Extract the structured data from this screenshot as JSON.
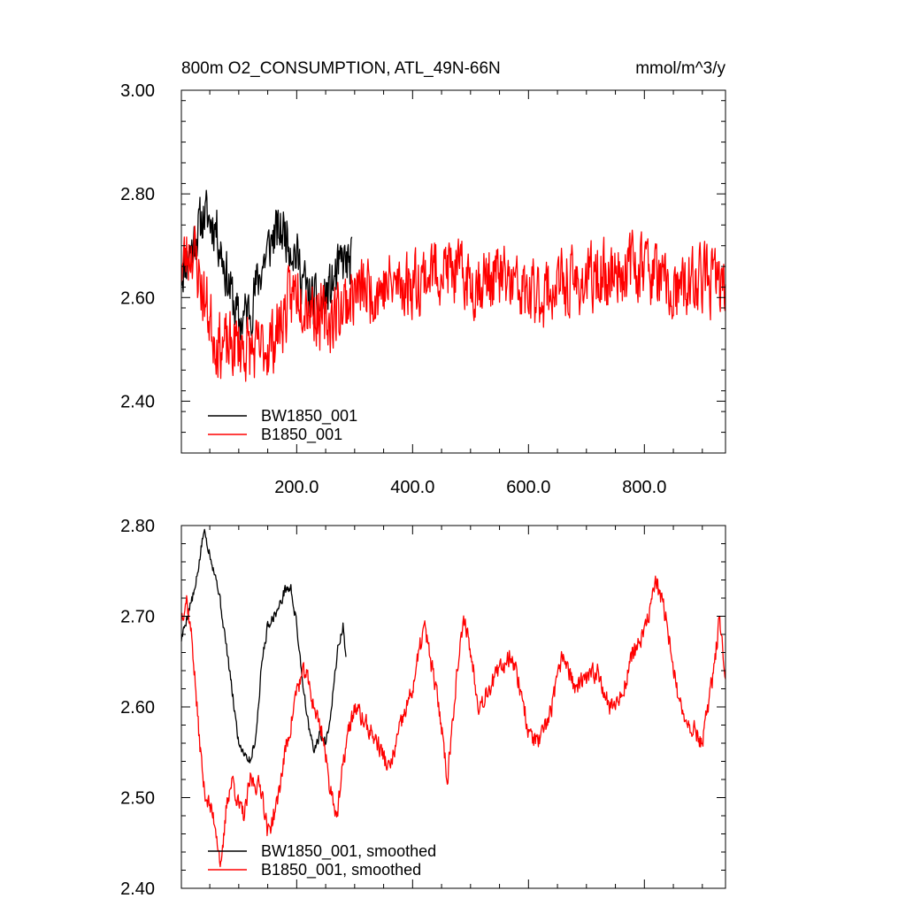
{
  "chart_data": [
    {
      "type": "line",
      "title": "800m O2_CONSUMPTION, ATL_49N-66N",
      "units": "mmol/m^3/y",
      "xlim": [
        1,
        940
      ],
      "ylim": [
        2.3,
        3.0
      ],
      "xticks": [
        200,
        400,
        600,
        800
      ],
      "xtick_labels": [
        "200.0",
        "400.0",
        "600.0",
        "800.0"
      ],
      "yticks": [
        2.4,
        2.6,
        2.8,
        3.0
      ],
      "ytick_labels": [
        "2.40",
        "2.60",
        "2.80",
        "3.00"
      ],
      "grid": false,
      "legend_position": "lower-left",
      "series": [
        {
          "name": "BW1850_001",
          "color": "#000000",
          "x_start": 1,
          "x_end": 295,
          "anchor_x": [
            1,
            20,
            40,
            60,
            80,
            100,
            120,
            140,
            160,
            180,
            200,
            220,
            240,
            260,
            280,
            295
          ],
          "anchor_y": [
            2.65,
            2.7,
            2.76,
            2.74,
            2.64,
            2.55,
            2.58,
            2.66,
            2.72,
            2.73,
            2.68,
            2.6,
            2.58,
            2.62,
            2.67,
            2.66
          ],
          "noise_amplitude": 0.07,
          "seed": 11
        },
        {
          "name": "B1850_001",
          "color": "#ff0000",
          "x_start": 1,
          "x_end": 940,
          "anchor_x": [
            1,
            20,
            40,
            60,
            80,
            100,
            130,
            160,
            200,
            250,
            300,
            350,
            400,
            450,
            500,
            550,
            600,
            650,
            700,
            750,
            800,
            850,
            900,
            940
          ],
          "anchor_y": [
            2.66,
            2.7,
            2.6,
            2.52,
            2.5,
            2.51,
            2.49,
            2.52,
            2.62,
            2.55,
            2.61,
            2.62,
            2.63,
            2.66,
            2.63,
            2.64,
            2.6,
            2.62,
            2.63,
            2.65,
            2.67,
            2.6,
            2.64,
            2.62
          ],
          "noise_amplitude": 0.09,
          "seed": 23
        }
      ]
    },
    {
      "type": "line",
      "title": "",
      "xlim": [
        1,
        940
      ],
      "ylim": [
        2.4,
        2.8
      ],
      "yticks": [
        2.4,
        2.5,
        2.6,
        2.7,
        2.8
      ],
      "ytick_labels": [
        "2.40",
        "2.50",
        "2.60",
        "2.70",
        "2.80"
      ],
      "xticks": [
        200,
        400,
        600,
        800
      ],
      "xtick_labels": [],
      "grid": false,
      "legend_position": "lower-left",
      "series": [
        {
          "name": "BW1850_001, smoothed",
          "color": "#000000",
          "x_start": 1,
          "x_end": 285,
          "anchor_x": [
            1,
            15,
            25,
            40,
            50,
            65,
            80,
            90,
            100,
            110,
            120,
            130,
            140,
            150,
            160,
            170,
            180,
            190,
            200,
            210,
            220,
            230,
            240,
            250,
            260,
            270,
            280,
            285
          ],
          "anchor_y": [
            2.675,
            2.71,
            2.73,
            2.795,
            2.77,
            2.73,
            2.66,
            2.61,
            2.56,
            2.55,
            2.54,
            2.57,
            2.65,
            2.69,
            2.7,
            2.71,
            2.73,
            2.73,
            2.69,
            2.63,
            2.58,
            2.55,
            2.57,
            2.56,
            2.6,
            2.66,
            2.69,
            2.65
          ],
          "noise_amplitude": 0.008,
          "seed": 5
        },
        {
          "name": "B1850_001, smoothed",
          "color": "#ff0000",
          "x_start": 1,
          "x_end": 940,
          "anchor_x": [
            1,
            10,
            20,
            30,
            40,
            50,
            60,
            70,
            80,
            90,
            100,
            110,
            120,
            140,
            150,
            165,
            180,
            190,
            200,
            215,
            230,
            245,
            255,
            270,
            285,
            300,
            320,
            340,
            360,
            380,
            400,
            420,
            440,
            450,
            460,
            475,
            490,
            500,
            515,
            530,
            550,
            570,
            590,
            600,
            620,
            640,
            660,
            680,
            700,
            720,
            740,
            760,
            780,
            800,
            820,
            840,
            860,
            880,
            900,
            920,
            930,
            940
          ],
          "anchor_y": [
            2.7,
            2.72,
            2.67,
            2.58,
            2.51,
            2.49,
            2.47,
            2.42,
            2.5,
            2.52,
            2.49,
            2.48,
            2.52,
            2.51,
            2.46,
            2.49,
            2.55,
            2.58,
            2.62,
            2.64,
            2.6,
            2.57,
            2.52,
            2.48,
            2.56,
            2.6,
            2.58,
            2.56,
            2.53,
            2.58,
            2.62,
            2.69,
            2.62,
            2.58,
            2.52,
            2.63,
            2.7,
            2.66,
            2.6,
            2.62,
            2.64,
            2.66,
            2.61,
            2.57,
            2.56,
            2.6,
            2.66,
            2.62,
            2.63,
            2.64,
            2.6,
            2.61,
            2.66,
            2.68,
            2.74,
            2.69,
            2.6,
            2.58,
            2.56,
            2.64,
            2.7,
            2.62
          ],
          "noise_amplitude": 0.015,
          "seed": 37
        }
      ]
    }
  ]
}
